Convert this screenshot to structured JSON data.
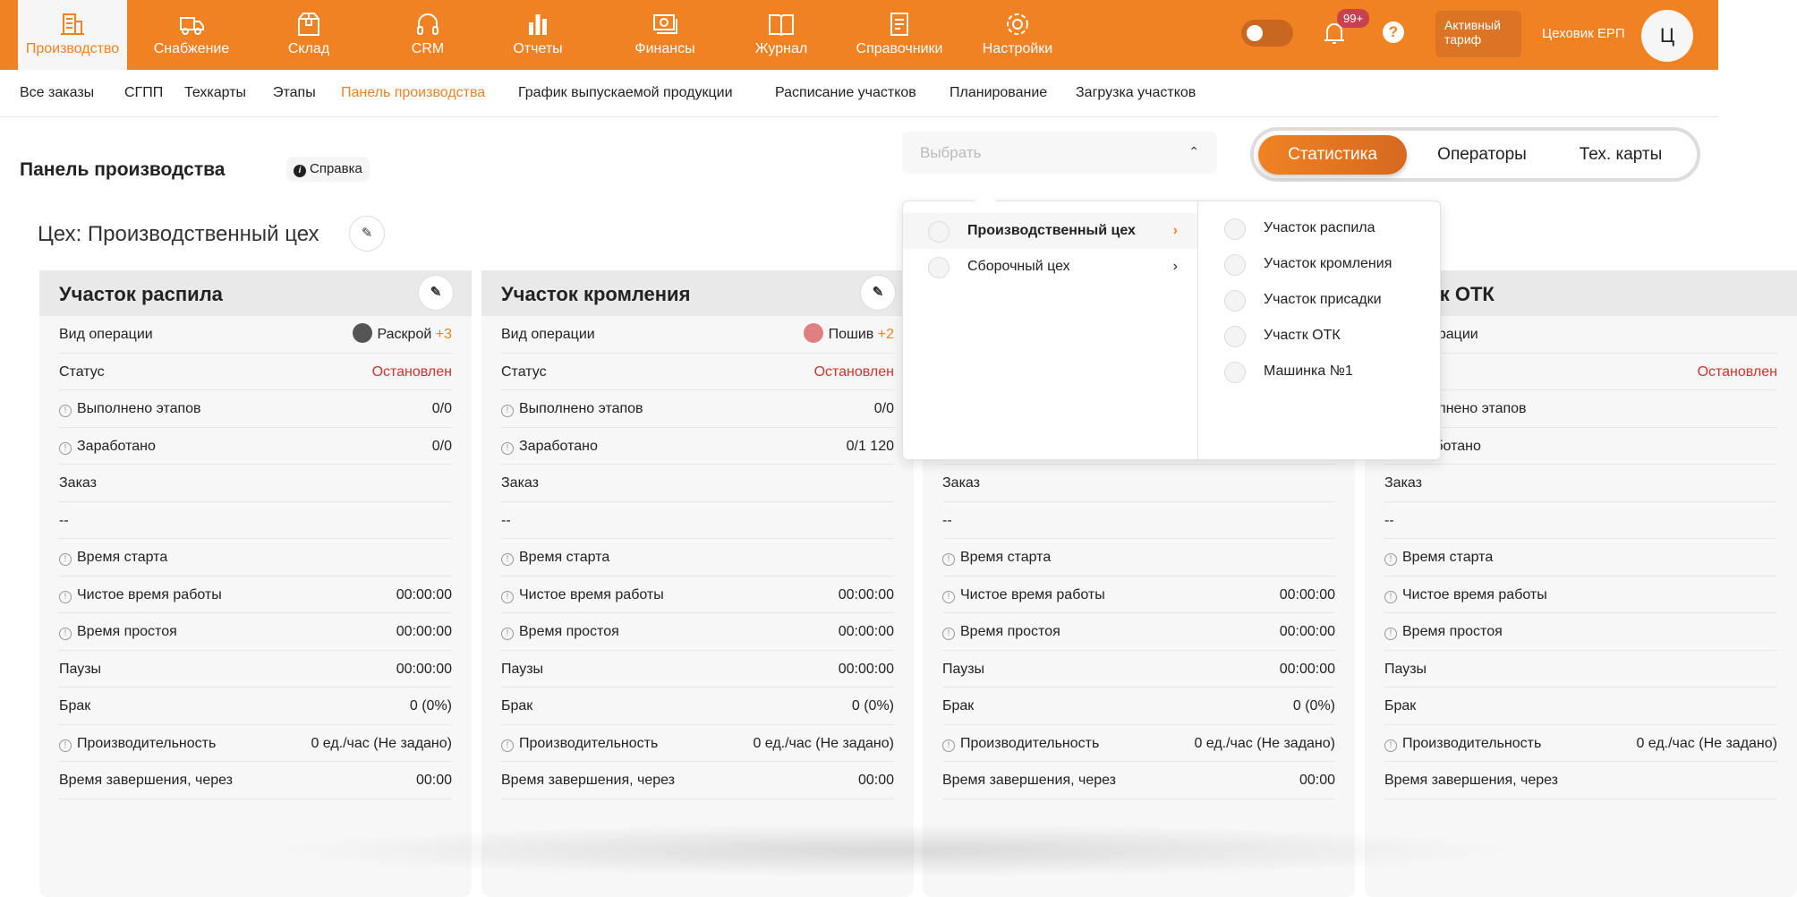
{
  "topnav": {
    "items": [
      {
        "label": "Производство",
        "icon": "building-icon",
        "active": true
      },
      {
        "label": "Снабжение",
        "icon": "truck-icon"
      },
      {
        "label": "Склад",
        "icon": "box-icon"
      },
      {
        "label": "CRM",
        "icon": "headset-icon"
      },
      {
        "label": "Отчеты",
        "icon": "bar-chart-icon"
      },
      {
        "label": "Финансы",
        "icon": "money-icon"
      },
      {
        "label": "Журнал",
        "icon": "book-icon"
      },
      {
        "label": "Справочники",
        "icon": "document-icon"
      },
      {
        "label": "Настройки",
        "icon": "gear-icon"
      }
    ],
    "notifications_badge": "99+",
    "help": "?",
    "tariff": "Активный тариф",
    "user_name": "Цеховик ЕРП",
    "avatar_letter": "Ц",
    "accent": "#f08224"
  },
  "subnav": {
    "items": [
      "Все заказы",
      "СГПП",
      "Техкарты",
      "Этапы",
      "Панель производства",
      "График выпускаемой продукции",
      "Расписание участков",
      "Планирование",
      "Загрузка участков"
    ],
    "active": "Панель производства"
  },
  "page": {
    "title": "Панель производства",
    "help_label": "Справка",
    "select_placeholder": "Выбрать",
    "segments": [
      "Статистика",
      "Операторы",
      "Тех. карты"
    ],
    "active_segment": "Статистика",
    "zone_title": "Цех: Производственный цех"
  },
  "labels": {
    "op": "Вид операции",
    "status": "Статус",
    "stages": "Выполнено этапов",
    "earned": "Заработано",
    "order": "Заказ",
    "start": "Время старта",
    "work": "Чистое время работы",
    "idle": "Время простоя",
    "pauses": "Паузы",
    "defect": "Брак",
    "perf": "Производительность",
    "finish": "Время завершения, через"
  },
  "cards": [
    {
      "title": "Участок распила",
      "op": "Раскрой",
      "op_more": "+3",
      "op_color": "#555555",
      "status": "Остановлен",
      "stages": "0/0",
      "earned": "0/0",
      "order": "--",
      "work": "00:00:00",
      "idle": "00:00:00",
      "pauses": "00:00:00",
      "defect": "0 (0%)",
      "perf": "0 ед./час (Не задано)",
      "finish": "00:00"
    },
    {
      "title": "Участок кромления",
      "op": "Пошив",
      "op_more": "+2",
      "op_color": "#e07f7f",
      "status": "Остановлен",
      "stages": "0/0",
      "earned": "0/1 120",
      "order": "--",
      "work": "00:00:00",
      "idle": "00:00:00",
      "pauses": "00:00:00",
      "defect": "0 (0%)",
      "perf": "0 ед./час (Не задано)",
      "finish": "00:00"
    },
    {
      "order": "--",
      "work": "00:00:00",
      "idle": "00:00:00",
      "pauses": "00:00:00",
      "defect": "0 (0%)",
      "perf": "0 ед./час (Не задано)",
      "finish": "00:00"
    },
    {
      "title": "Участк ОТК",
      "status": "Остановлен",
      "order": "--",
      "perf": "0 ед./час (Не задано)"
    }
  ],
  "dropdown": {
    "workshops": [
      "Производственный цех",
      "Сборочный цех"
    ],
    "selected": "Производственный цех",
    "sections": [
      "Участок распила",
      "Участок кромления",
      "Участок присадки",
      "Участк ОТК",
      "Машинка №1"
    ]
  }
}
